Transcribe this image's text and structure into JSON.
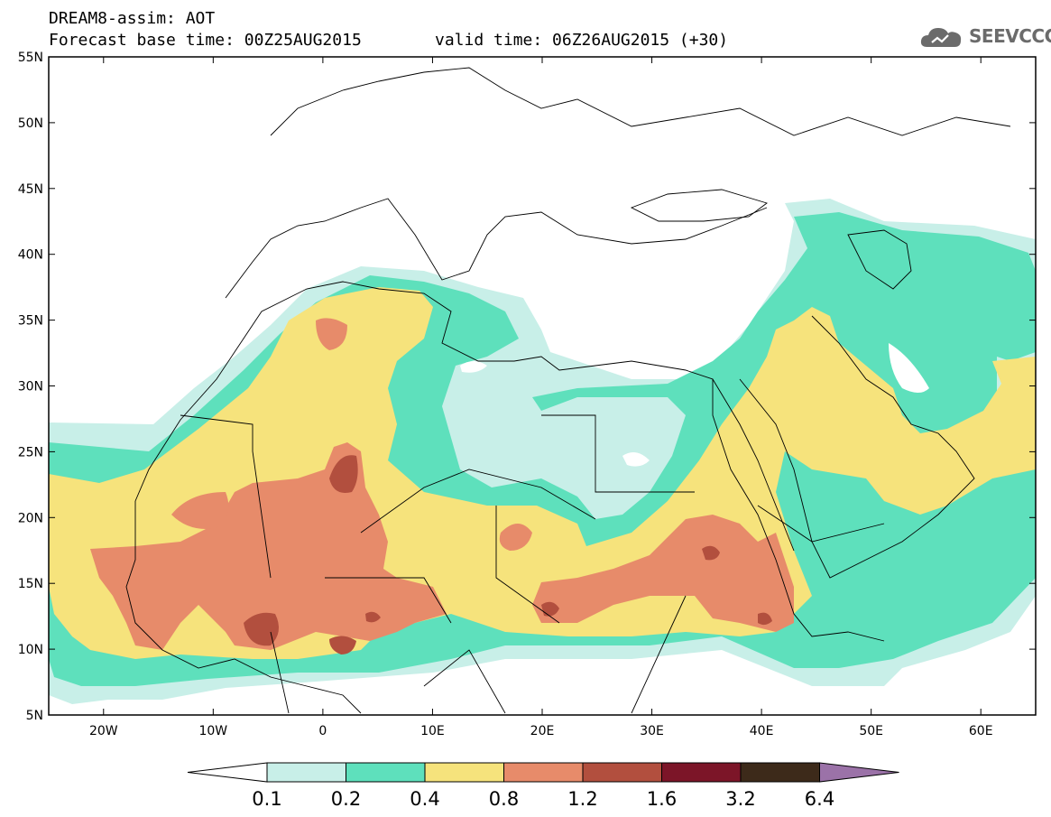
{
  "header": {
    "title": "DREAM8-assim: AOT",
    "base_time": "Forecast base time: 00Z25AUG2015",
    "valid_time": "valid time: 06Z26AUG2015 (+30)"
  },
  "logo": {
    "text": "SEEVCCC",
    "icon": "cloud-icon"
  },
  "map": {
    "lon_range": [
      -25,
      65
    ],
    "lat_range": [
      5,
      55
    ],
    "lat_ticks": [
      {
        "value": 55,
        "label": "55N"
      },
      {
        "value": 50,
        "label": "50N"
      },
      {
        "value": 45,
        "label": "45N"
      },
      {
        "value": 40,
        "label": "40N"
      },
      {
        "value": 35,
        "label": "35N"
      },
      {
        "value": 30,
        "label": "30N"
      },
      {
        "value": 25,
        "label": "25N"
      },
      {
        "value": 20,
        "label": "20N"
      },
      {
        "value": 15,
        "label": "15N"
      },
      {
        "value": 10,
        "label": "10N"
      },
      {
        "value": 5,
        "label": "5N"
      }
    ],
    "lon_ticks": [
      {
        "value": -20,
        "label": "20W"
      },
      {
        "value": -10,
        "label": "10W"
      },
      {
        "value": 0,
        "label": "0"
      },
      {
        "value": 10,
        "label": "10E"
      },
      {
        "value": 20,
        "label": "20E"
      },
      {
        "value": 30,
        "label": "30E"
      },
      {
        "value": 40,
        "label": "40E"
      },
      {
        "value": 50,
        "label": "50E"
      },
      {
        "value": 60,
        "label": "60E"
      }
    ]
  },
  "legend": {
    "levels": [
      "0.1",
      "0.2",
      "0.4",
      "0.8",
      "1.2",
      "1.6",
      "3.2",
      "6.4"
    ],
    "colors": [
      "#ffffff",
      "#c8efe8",
      "#5ee0bc",
      "#f6e37c",
      "#e78b6a",
      "#b24f3e",
      "#7c1528",
      "#3d2a1a",
      "#9b72a8"
    ]
  }
}
